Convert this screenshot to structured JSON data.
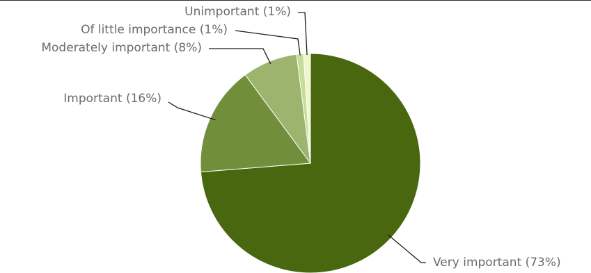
{
  "chart_data": {
    "type": "pie",
    "title": "",
    "slices": [
      {
        "label": "Very important (73%)",
        "value": 73,
        "color": "#48670f"
      },
      {
        "label": "Important (16%)",
        "value": 16,
        "color": "#718f3b"
      },
      {
        "label": "Moderately important (8%)",
        "value": 8,
        "color": "#9db46f"
      },
      {
        "label": "Of little importance (1%)",
        "value": 1,
        "color": "#c7dc9a"
      },
      {
        "label": "Unimportant (1%)",
        "value": 1,
        "color": "#eef7c9"
      }
    ]
  }
}
